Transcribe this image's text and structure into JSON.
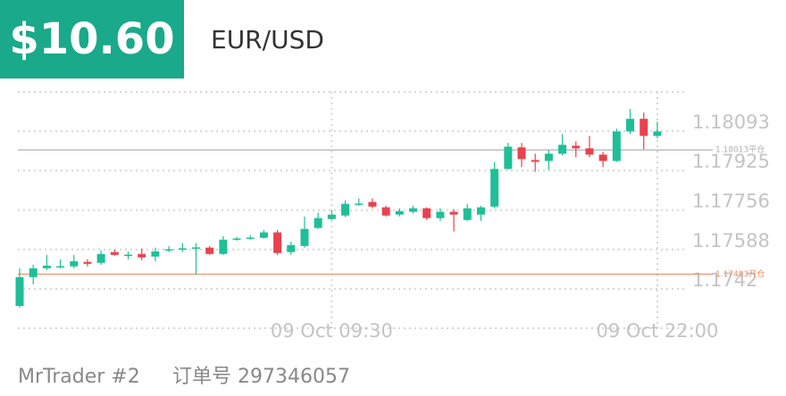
{
  "header": {
    "amount": "$10.60",
    "symbol": "EUR/USD"
  },
  "chart_data": {
    "type": "candlestick",
    "categories": [
      null,
      null,
      null,
      null,
      null,
      null,
      null,
      null,
      null,
      null,
      null,
      null,
      null,
      null,
      null,
      null,
      null,
      null,
      null,
      null,
      null,
      null,
      null,
      "09 Oct 09:30",
      null,
      null,
      null,
      null,
      null,
      null,
      null,
      null,
      null,
      null,
      null,
      null,
      null,
      null,
      null,
      null,
      null,
      null,
      null,
      null,
      null,
      null,
      null,
      "09 Oct 22:00"
    ],
    "open": [
      1.17347,
      1.1747,
      1.17508,
      1.17516,
      1.17516,
      1.17535,
      1.17531,
      1.17577,
      1.17565,
      1.17569,
      1.17558,
      1.17588,
      1.17592,
      1.17596,
      1.17596,
      1.17569,
      1.17634,
      1.17638,
      1.17638,
      1.17661,
      1.17577,
      1.17603,
      1.1768,
      1.17718,
      1.17733,
      1.17783,
      1.17791,
      1.17768,
      1.17737,
      1.17749,
      1.17764,
      1.17722,
      1.17749,
      1.17714,
      1.17737,
      1.17771,
      1.17932,
      1.18024,
      1.1797,
      1.17966,
      1.17997,
      1.18031,
      1.1802,
      1.17993,
      1.17966,
      1.18092,
      1.18146,
      1.18073
    ],
    "high": [
      1.17508,
      1.17523,
      1.17565,
      1.17546,
      1.17565,
      1.17546,
      1.17584,
      1.17588,
      1.1758,
      1.17592,
      1.17596,
      1.17603,
      1.17615,
      1.17615,
      1.17603,
      1.17645,
      1.17642,
      1.17649,
      1.17672,
      1.17672,
      1.17622,
      1.17729,
      1.17745,
      1.17756,
      1.17798,
      1.17806,
      1.17806,
      1.17775,
      1.17764,
      1.17775,
      1.17768,
      1.17764,
      1.1776,
      1.17783,
      1.17775,
      1.17962,
      1.18043,
      1.18043,
      1.17997,
      1.18012,
      1.18081,
      1.1805,
      1.18073,
      1.18005,
      1.18104,
      1.18188,
      1.18173,
      1.18134
    ],
    "low": [
      1.1734,
      1.17439,
      1.175,
      1.17508,
      1.17508,
      1.17516,
      1.17523,
      1.17561,
      1.17546,
      1.17542,
      1.17538,
      1.17577,
      1.17577,
      1.17481,
      1.17565,
      1.17565,
      1.17626,
      1.1763,
      1.17634,
      1.17565,
      1.17565,
      1.17596,
      1.17676,
      1.17714,
      1.17726,
      1.17775,
      1.17764,
      1.17729,
      1.17729,
      1.17741,
      1.17714,
      1.1771,
      1.17665,
      1.1771,
      1.1771,
      1.17764,
      1.17928,
      1.1794,
      1.1792,
      1.17928,
      1.17989,
      1.17982,
      1.17982,
      1.1794,
      1.17962,
      1.18081,
      1.18016,
      1.18062
    ],
    "close": [
      1.1747,
      1.17508,
      1.17519,
      1.17517,
      1.17538,
      1.17527,
      1.17569,
      1.17565,
      1.17566,
      1.17554,
      1.1758,
      1.17589,
      1.17593,
      1.17597,
      1.17569,
      1.1763,
      1.17635,
      1.17639,
      1.17661,
      1.17573,
      1.17607,
      1.17676,
      1.17722,
      1.17737,
      1.17783,
      1.17784,
      1.17771,
      1.17733,
      1.17752,
      1.17764,
      1.17722,
      1.17749,
      1.17737,
      1.17764,
      1.17768,
      1.17932,
      1.18027,
      1.17974,
      1.17962,
      1.17997,
      1.18035,
      1.1802,
      1.17993,
      1.17966,
      1.18092,
      1.18146,
      1.18073,
      1.18092
    ],
    "up_color": "#1fbf97",
    "down_color": "#e8424f",
    "ylim": [
      1.17252,
      1.18261
    ],
    "yticks": [
      1.1742,
      1.17588,
      1.17756,
      1.17925,
      1.18093
    ],
    "grid": true,
    "hlines": [
      {
        "value": 1.18013,
        "label": "1.18013平仓",
        "color": "#b0b0b0"
      },
      {
        "value": 1.17483,
        "label": "1.17483开仓",
        "color": "#f08a60"
      }
    ]
  },
  "footer": {
    "account": "MrTrader #2",
    "order": "订单号 297346057"
  }
}
